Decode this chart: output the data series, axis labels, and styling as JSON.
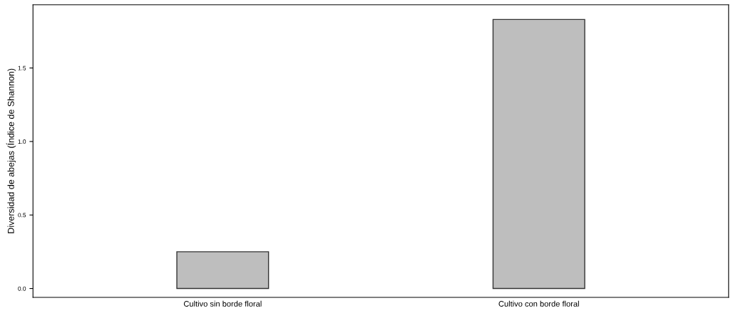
{
  "chart_data": {
    "type": "bar",
    "ylabel": "Diversidad de abejas (Índice de Shannon)",
    "categories": [
      "Cultivo sin borde floral",
      "Cultivo con borde floral"
    ],
    "values": [
      0.25,
      1.83
    ],
    "color": "#bebebe",
    "ylim": [
      -0.06,
      1.93
    ],
    "yticks": [
      {
        "value": 0,
        "label": "0.0"
      },
      {
        "value": 0.5,
        "label": "0.5"
      },
      {
        "value": 1,
        "label": "1.0"
      },
      {
        "value": 1.5,
        "label": "1.5"
      }
    ],
    "grid": false
  }
}
